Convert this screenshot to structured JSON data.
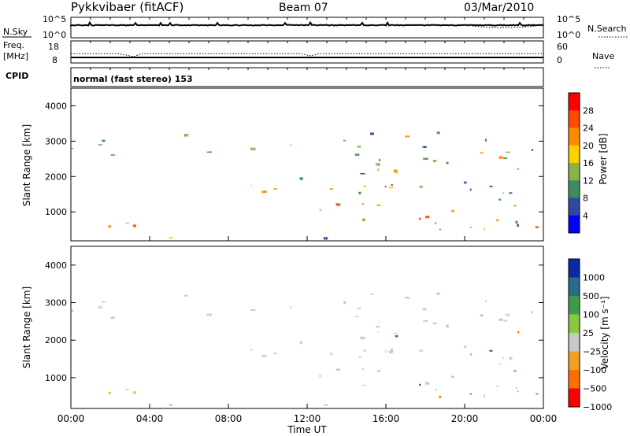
{
  "header": {
    "radar": "Pykkvibaer (fitACF)",
    "beam": "Beam 07",
    "date": "03/Mar/2010"
  },
  "top_panels": {
    "nsky_label": "N.Sky",
    "nsky_ticks": [
      "10^5",
      "10^0"
    ],
    "nsearch_label": "N.Search",
    "nsearch_ticks": [
      "10^5",
      "10^0"
    ],
    "freq_label_1": "Freq.",
    "freq_label_2": "[MHz]",
    "freq_ticks": [
      "18",
      "8"
    ],
    "nave_label": "Nave",
    "nave_ticks": [
      "60",
      "0"
    ],
    "cpid_label": "CPID",
    "cpid_text": "normal (fast stereo) 153"
  },
  "chart_data": [
    {
      "type": "heatmap",
      "name": "power",
      "ylabel": "Slant Range [km]",
      "ylim": [
        180,
        4500
      ],
      "yticks": [
        "4000",
        "3000",
        "2000",
        "1000"
      ],
      "colorbar_label": "Power [dB]",
      "colorbar_ticks": [
        "28",
        "24",
        "20",
        "16",
        "12",
        "8",
        "4"
      ],
      "colorbar_colors": [
        "#ff0000",
        "#ff4a00",
        "#ff8c00",
        "#ffd000",
        "#8ab24a",
        "#3e8d60",
        "#2b4aa0",
        "#0000ff"
      ],
      "echo_regions": [
        {
          "t0": 0.0,
          "t1": 7.2,
          "r0": 2450,
          "r1": 3250,
          "level": "low"
        },
        {
          "t0": 0.0,
          "t1": 2.0,
          "r0": 250,
          "r1": 700,
          "level": "high"
        },
        {
          "t0": 1.5,
          "t1": 4.5,
          "r0": 300,
          "r1": 800,
          "level": "high"
        },
        {
          "t0": 4.5,
          "t1": 9.0,
          "r0": 200,
          "r1": 450,
          "level": "medium"
        },
        {
          "t0": 9.0,
          "t1": 24.0,
          "r0": 200,
          "r1": 3300,
          "level": "medium"
        },
        {
          "t0": 13.0,
          "t1": 16.0,
          "r0": 900,
          "r1": 1800,
          "level": "high"
        },
        {
          "t0": 16.0,
          "t1": 24.0,
          "r0": 300,
          "r1": 900,
          "level": "high"
        }
      ]
    },
    {
      "type": "heatmap",
      "name": "velocity",
      "ylabel": "Slant Range [km]",
      "xlabel": "Time UT",
      "ylim": [
        180,
        4500
      ],
      "yticks": [
        "4000",
        "3000",
        "2000",
        "1000"
      ],
      "xlim": [
        0,
        24
      ],
      "xticks": [
        "00:00",
        "04:00",
        "08:00",
        "12:00",
        "16:00",
        "20:00",
        "00:00"
      ],
      "colorbar_label": "Velocity [m s⁻¹]",
      "colorbar_ticks": [
        "1000",
        "500",
        "100",
        "25",
        "−25",
        "−100",
        "−500",
        "−1000"
      ],
      "colorbar_colors": [
        "#0a2aa0",
        "#2a6a8c",
        "#3c9c4c",
        "#88c842",
        "#c8c8c8",
        "#f0a020",
        "#ff7000",
        "#ff0000"
      ]
    }
  ]
}
